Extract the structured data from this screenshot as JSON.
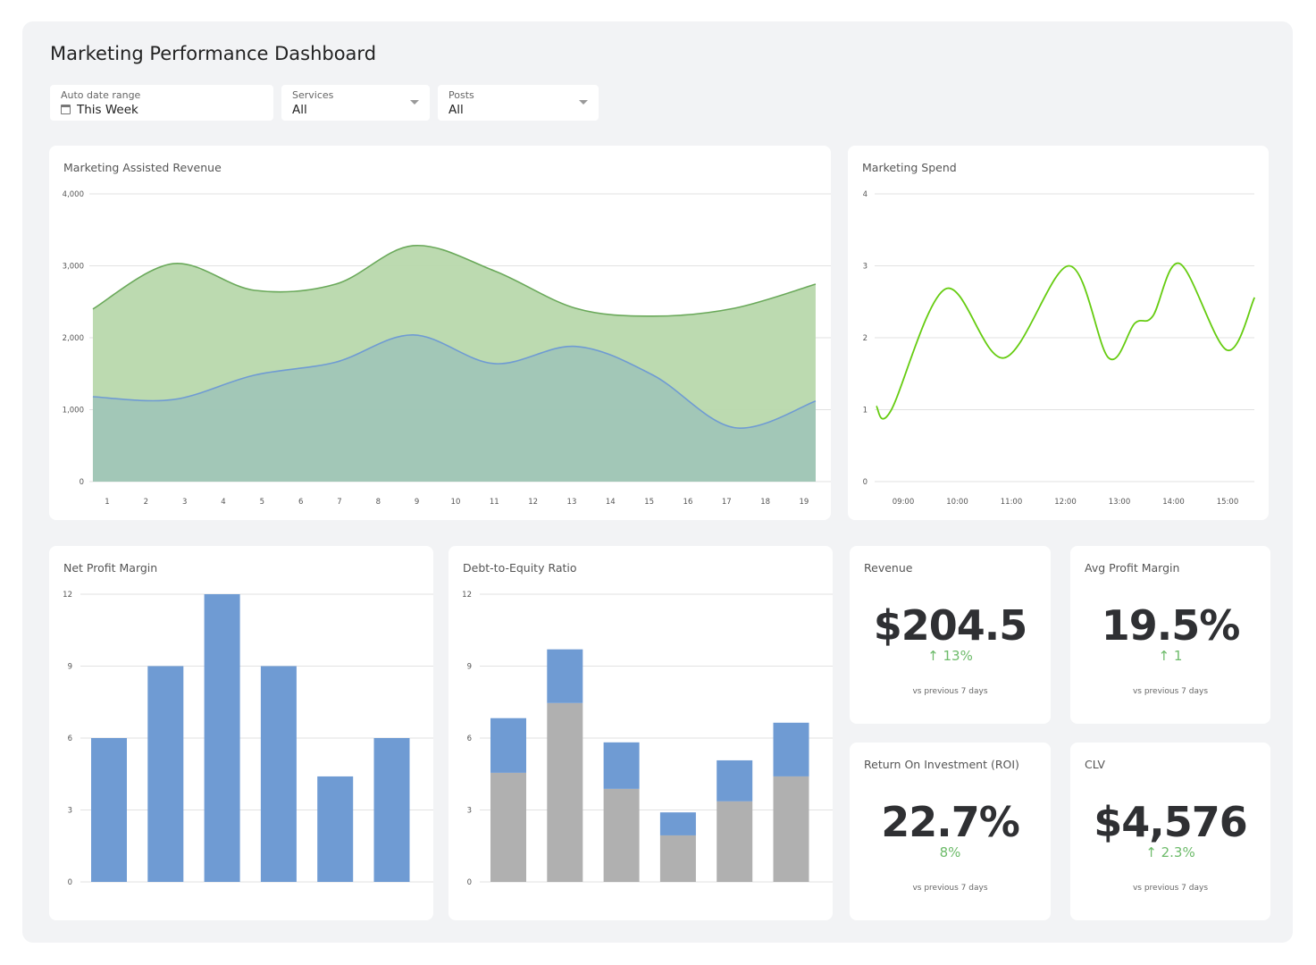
{
  "title": "Marketing Performance Dashboard",
  "filters": [
    {
      "label": "Auto date range",
      "value": "This Week",
      "icon": "calendar-icon"
    },
    {
      "label": "Services",
      "value": "All",
      "icon": "chevron-down-icon"
    },
    {
      "label": "Posts",
      "value": "All",
      "icon": "chevron-down-icon"
    }
  ],
  "colors": {
    "green_area": "#b8d8ac",
    "green_line": "#6aa95a",
    "blue_line": "#6f9bd3",
    "blue_area": "#9fc4b8",
    "spend_line": "#66cc11",
    "bar_blue": "#6f9bd3",
    "bar_gray": "#b0b0b0",
    "positive": "#6dbb6a"
  },
  "chart_data": [
    {
      "id": "revenue",
      "type": "area",
      "title": "Marketing Assisted Revenue",
      "ylim": [
        0,
        4000
      ],
      "yticks": [
        "0",
        "1,000",
        "2,000",
        "3,000",
        "4,000"
      ],
      "yticks_values": [
        0,
        1000,
        2000,
        3000,
        4000
      ],
      "xticks": [
        "1",
        "2",
        "3",
        "4",
        "5",
        "6",
        "7",
        "8",
        "9",
        "10",
        "11",
        "12",
        "13",
        "14",
        "15",
        "16",
        "17",
        "18",
        "19"
      ],
      "xlim": [
        0.63,
        19.3
      ],
      "grid": true,
      "series": [
        {
          "x": [
            0.63,
            2.7,
            4.8,
            6.9,
            8.9,
            11.0,
            13.1,
            15.1,
            17.2,
            19.3
          ],
          "values": [
            2400,
            3030,
            2660,
            2745,
            3280,
            2930,
            2410,
            2300,
            2410,
            2745
          ]
        },
        {
          "x": [
            0.63,
            2.7,
            4.8,
            6.9,
            8.9,
            11.0,
            13.1,
            15.1,
            17.2,
            19.3
          ],
          "values": [
            1180,
            1140,
            1480,
            1660,
            2040,
            1640,
            1880,
            1480,
            750,
            1120
          ]
        }
      ]
    },
    {
      "id": "spend",
      "type": "line",
      "title": "Marketing Spend",
      "ylim": [
        0,
        4
      ],
      "yticks": [
        "0",
        "1",
        "2",
        "3",
        "4"
      ],
      "yticks_values": [
        0,
        1,
        2,
        3,
        4
      ],
      "xticks": [
        "09:00",
        "10:00",
        "11:00",
        "12:00",
        "13:00",
        "14:00",
        "15:00"
      ],
      "xlim": [
        "08:30",
        "15:30"
      ],
      "grid": true,
      "x": [
        "08:30",
        "08:46",
        "09:47",
        "10:52",
        "12:04",
        "12:48",
        "13:17",
        "13:37",
        "14:07",
        "14:59",
        "15:30"
      ],
      "values": [
        1.05,
        0.98,
        2.68,
        1.72,
        3.0,
        1.72,
        2.2,
        2.3,
        3.03,
        1.83,
        2.56
      ]
    },
    {
      "id": "net-profit",
      "type": "bar",
      "title": "Net Profit Margin",
      "ylim": [
        0,
        12
      ],
      "yticks": [
        "0",
        "3",
        "6",
        "9",
        "12"
      ],
      "yticks_values": [
        0,
        3,
        6,
        9,
        12
      ],
      "grid": true,
      "values": [
        6,
        9,
        12,
        9,
        4.4,
        6
      ]
    },
    {
      "id": "debt-equity",
      "type": "bar",
      "stacked": true,
      "title": "Debt-to-Equity Ratio",
      "ylim": [
        0,
        12
      ],
      "yticks": [
        "0",
        "3",
        "6",
        "9",
        "12"
      ],
      "yticks_values": [
        0,
        3,
        6,
        9,
        12
      ],
      "grid": true,
      "series": [
        {
          "color": "gray",
          "values": [
            4.55,
            7.46,
            3.88,
            1.94,
            3.36,
            4.4
          ]
        },
        {
          "color": "blue",
          "values": [
            2.28,
            2.24,
            1.94,
            0.96,
            1.71,
            2.24
          ]
        }
      ]
    }
  ],
  "kpis": [
    {
      "title": "Revenue",
      "value": "$204.5",
      "change": "↑ 13%",
      "compare": "vs previous 7 days"
    },
    {
      "title": "Avg Profit Margin",
      "value": "19.5%",
      "change": "↑ 1",
      "compare": "vs previous 7 days"
    },
    {
      "title": "Return On Investment (ROI)",
      "value": "22.7%",
      "change": "8%",
      "compare": "vs previous 7 days"
    },
    {
      "title": "CLV",
      "value": "$4,576",
      "change": "↑ 2.3%",
      "compare": "vs previous 7 days"
    }
  ]
}
